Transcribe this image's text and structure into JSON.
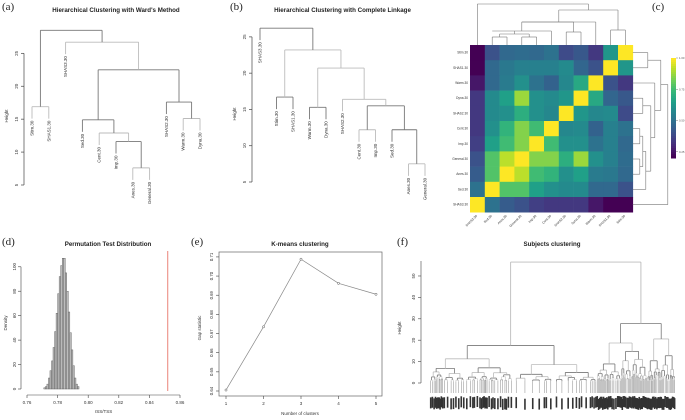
{
  "chart_data": [
    {
      "panel": "(a)",
      "type": "dendrogram",
      "title": "Hierarchical Clustering with Ward's Method",
      "ylabel": "Height",
      "xlabel": "",
      "yticks": [
        5,
        10,
        15,
        20,
        25
      ],
      "ylim": [
        5,
        29
      ],
      "leaves": [
        "Stim.30",
        "SHAS1.30",
        "SHAS3.30",
        "Sed.30",
        "Cent.30",
        "Imp.30",
        "Anes.30",
        "General.30",
        "SHAS2.30",
        "Warm.30",
        "Dyna.30"
      ],
      "merges": [
        {
          "a": "Anes.30",
          "b": "General.30",
          "height": 7.6
        },
        {
          "a": "Imp.30",
          "b": "m0",
          "height": 11.6
        },
        {
          "a": "Cent.30",
          "b": "m1",
          "height": 12.9
        },
        {
          "a": "Sed.30",
          "b": "m2",
          "height": 14.9
        },
        {
          "a": "Warm.30",
          "b": "Dyna.30",
          "height": 15.1
        },
        {
          "a": "SHAS2.30",
          "b": "m4",
          "height": 17.6
        },
        {
          "a": "Stim.30",
          "b": "SHAS1.30",
          "height": 16.9
        },
        {
          "a": "m3",
          "b": "m5",
          "height": 22.5
        },
        {
          "a": "SHAS3.30",
          "b": "m7",
          "height": 26.7
        },
        {
          "a": "m6",
          "b": "m8",
          "height": 28.5
        }
      ]
    },
    {
      "panel": "(b)",
      "type": "dendrogram",
      "title": "Hierarchical Clustering with Complete Linkage",
      "ylabel": "Height",
      "xlabel": "",
      "yticks": [
        5,
        10,
        15,
        20,
        25
      ],
      "ylim": [
        5,
        26.5
      ],
      "leaves": [
        "SHAS3.30",
        "Stim.30",
        "SHAS1.30",
        "Warm.30",
        "Dyna.30",
        "SHAS2.30",
        "Cent.30",
        "Imp.30",
        "Sed.30",
        "Anes.30",
        "General.30"
      ],
      "merges": [
        {
          "a": "Anes.30",
          "b": "General.30",
          "height": 7.5
        },
        {
          "a": "Sed.30",
          "b": "m0",
          "height": 12.2
        },
        {
          "a": "Cent.30",
          "b": "Imp.30",
          "height": 12.2
        },
        {
          "a": "m2",
          "b": "m1",
          "height": 15.5
        },
        {
          "a": "SHAS2.30",
          "b": "m3",
          "height": 16.4
        },
        {
          "a": "Warm.30",
          "b": "Dyna.30",
          "height": 15.3
        },
        {
          "a": "m5",
          "b": "m4",
          "height": 20.7
        },
        {
          "a": "Stim.30",
          "b": "SHAS1.30",
          "height": 16.7
        },
        {
          "a": "m7",
          "b": "m6",
          "height": 23.2
        },
        {
          "a": "SHAS3.30",
          "b": "m8",
          "height": 26.2
        }
      ]
    },
    {
      "panel": "(c)",
      "type": "heatmap",
      "title": "",
      "rows": [
        "Stim.30",
        "SHAS1.30",
        "Warm.30",
        "Dyna.30",
        "SHAS2.30",
        "Cent.30",
        "Imp.30",
        "General.30",
        "Anes.30",
        "Sed.30",
        "SHAS3.30"
      ],
      "cols": [
        "SHAS3.30",
        "Sed.30",
        "Anes.30",
        "General.30",
        "Imp.30",
        "Cent.30",
        "SHAS2.30",
        "Dyna.30",
        "Warm.30",
        "SHAS1.30",
        "Stim.30"
      ],
      "colorbar_ticks": [
        1.0,
        0.75,
        0.5,
        0.25
      ],
      "colorbar_range": [
        0.2,
        1.0
      ],
      "colormap": "viridis",
      "values": [
        [
          0.2,
          0.4,
          0.47,
          0.48,
          0.47,
          0.5,
          0.38,
          0.42,
          0.33,
          0.62,
          1.0
        ],
        [
          0.2,
          0.47,
          0.52,
          0.55,
          0.55,
          0.55,
          0.58,
          0.46,
          0.4,
          1.0,
          0.62
        ],
        [
          0.25,
          0.47,
          0.53,
          0.6,
          0.5,
          0.45,
          0.57,
          0.68,
          1.0,
          0.4,
          0.33
        ],
        [
          0.33,
          0.58,
          0.65,
          0.88,
          0.6,
          0.58,
          0.62,
          1.0,
          0.68,
          0.46,
          0.42
        ],
        [
          0.33,
          0.58,
          0.6,
          0.7,
          0.6,
          0.57,
          1.0,
          0.62,
          0.57,
          0.58,
          0.38
        ],
        [
          0.33,
          0.6,
          0.72,
          0.85,
          0.75,
          1.0,
          0.57,
          0.58,
          0.45,
          0.55,
          0.5
        ],
        [
          0.35,
          0.65,
          0.75,
          0.85,
          1.0,
          0.75,
          0.6,
          0.6,
          0.5,
          0.55,
          0.47
        ],
        [
          0.4,
          0.78,
          0.92,
          1.0,
          0.85,
          0.85,
          0.7,
          0.88,
          0.6,
          0.55,
          0.48
        ],
        [
          0.43,
          0.78,
          1.0,
          0.92,
          0.75,
          0.72,
          0.6,
          0.65,
          0.53,
          0.52,
          0.47
        ],
        [
          0.5,
          1.0,
          0.78,
          0.78,
          0.65,
          0.6,
          0.58,
          0.58,
          0.47,
          0.47,
          0.4
        ],
        [
          1.0,
          0.5,
          0.43,
          0.4,
          0.35,
          0.33,
          0.33,
          0.33,
          0.25,
          0.2,
          0.2
        ]
      ]
    },
    {
      "panel": "(d)",
      "type": "bar",
      "title": "Permutation Test Distribution",
      "xlabel": "rSS/TSS",
      "ylabel": "Density",
      "xticks": [
        0.76,
        0.78,
        0.8,
        0.82,
        0.84,
        0.86
      ],
      "yticks": [
        0,
        20,
        40,
        60,
        80,
        100
      ],
      "xlim": [
        0.76,
        0.86
      ],
      "ylim": [
        0,
        108
      ],
      "bin_width": 0.001,
      "bin_start": 0.771,
      "density": [
        1,
        2,
        4,
        9,
        15,
        23,
        34,
        47,
        62,
        78,
        92,
        101,
        107,
        107,
        95,
        80,
        63,
        46,
        32,
        19,
        9,
        4,
        2
      ],
      "reference_line": {
        "x": 0.852,
        "color": "#e8756a"
      }
    },
    {
      "panel": "(e)",
      "type": "line",
      "title": "K-means clustering",
      "xlabel": "Number of clusters",
      "ylabel": "Gap statistic",
      "x": [
        1,
        2,
        3,
        4,
        5
      ],
      "values": [
        0.6405,
        0.6735,
        0.7088,
        0.6962,
        0.6905
      ],
      "xticks": [
        1,
        2,
        3,
        4,
        5
      ],
      "yticks": [
        0.64,
        0.65,
        0.66,
        0.67,
        0.68,
        0.69,
        0.7,
        0.71
      ],
      "ylim": [
        0.64,
        0.711
      ]
    },
    {
      "panel": "(f)",
      "type": "dendrogram",
      "title": "Subjects clustering",
      "ylabel": "Height",
      "xlabel": "",
      "yticks": [
        0,
        10,
        20,
        30,
        40,
        50
      ],
      "ylim": [
        0,
        57
      ],
      "top_merges": [
        {
          "cluster": "left",
          "height": 17.5
        },
        {
          "cluster": "right",
          "height": 27.8
        },
        {
          "cluster": "root",
          "height": 56.5
        }
      ]
    }
  ],
  "panel_labels": [
    "(a)",
    "(b)",
    "(c)",
    "(d)",
    "(e)",
    "(f)"
  ]
}
